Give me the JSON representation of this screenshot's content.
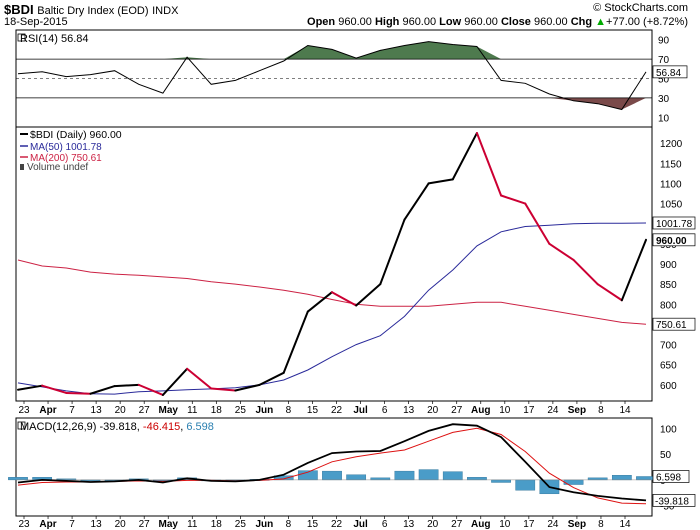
{
  "header": {
    "symbol": "$BDI",
    "name": "Baltic Dry Index (EOD)",
    "exchange": "INDX",
    "date": "18-Sep-2015",
    "watermark": "© StockCharts.com",
    "open_label": "Open",
    "open": "960.00",
    "high_label": "High",
    "high": "960.00",
    "low_label": "Low",
    "low": "960.00",
    "close_label": "Close",
    "close": "960.00",
    "chg_label": "Chg",
    "chg": "+77.00 (+8.72%)",
    "chg_arrow": "▲"
  },
  "rsi": {
    "legend": "RSI(14) 56.84",
    "current": "56.84",
    "levels": [
      90,
      70,
      50,
      30,
      10
    ],
    "colors": {
      "over": "#4e7a4e",
      "under": "#7a4a4a"
    }
  },
  "price": {
    "legend": [
      "$BDI (Daily) 960.00",
      "MA(50) 1001.78",
      "MA(200) 750.61",
      "Volume undef"
    ],
    "price_tag": "960.00",
    "ma50_tag": "1001.78",
    "ma200_tag": "750.61",
    "ticks": [
      1200,
      1150,
      1100,
      1050,
      1000,
      950,
      900,
      850,
      800,
      750,
      700,
      650,
      600
    ],
    "colors": {
      "up": "#000000",
      "down": "#cc0033",
      "ma50": "#2a2a9a",
      "ma200": "#cc2244"
    }
  },
  "macd": {
    "legend_prefix": "MACD(12,26,9) ",
    "v1": "-39.818",
    "v2": "-46.415",
    "v3": "6.598",
    "ticks": [
      100,
      50,
      0,
      -50
    ],
    "hist_tag": "6.598",
    "macd_tag": "-39.818"
  },
  "xaxis": {
    "labels": [
      "23",
      "Apr",
      "7",
      "13",
      "20",
      "27",
      "May",
      "11",
      "18",
      "25",
      "Jun",
      "8",
      "15",
      "22",
      "Jul",
      "6",
      "13",
      "20",
      "27",
      "Aug",
      "10",
      "17",
      "24",
      "Sep",
      "8",
      "14"
    ]
  },
  "chart_data": {
    "type": "line",
    "title": "$BDI Baltic Dry Index (EOD) INDX",
    "x": [
      "Mar 23",
      "Mar 30",
      "Apr 7",
      "Apr 13",
      "Apr 20",
      "Apr 27",
      "May 4",
      "May 11",
      "May 18",
      "May 25",
      "Jun 1",
      "Jun 8",
      "Jun 15",
      "Jun 22",
      "Jun 29",
      "Jul 6",
      "Jul 13",
      "Jul 20",
      "Jul 27",
      "Aug 3",
      "Aug 10",
      "Aug 17",
      "Aug 24",
      "Aug 31",
      "Sep 8",
      "Sep 14",
      "Sep 18"
    ],
    "series": [
      {
        "name": "$BDI (Daily)",
        "values": [
          588,
          598,
          580,
          578,
          597,
          600,
          575,
          640,
          591,
          586,
          600,
          630,
          782,
          830,
          797,
          850,
          1010,
          1100,
          1110,
          1225,
          1070,
          1050,
          950,
          910,
          850,
          810,
          960
        ]
      },
      {
        "name": "MA(50)",
        "values": [
          605,
          595,
          585,
          578,
          577,
          583,
          585,
          588,
          590,
          593,
          600,
          612,
          637,
          670,
          700,
          722,
          770,
          835,
          885,
          945,
          980,
          993,
          996,
          1000,
          1001,
          1001,
          1001.78
        ]
      },
      {
        "name": "MA(200)",
        "values": [
          910,
          895,
          890,
          880,
          875,
          872,
          868,
          864,
          856,
          850,
          843,
          835,
          825,
          812,
          800,
          795,
          795,
          795,
          800,
          805,
          805,
          795,
          785,
          775,
          765,
          755,
          750.61
        ]
      },
      {
        "name": "RSI(14)",
        "values": [
          55,
          57,
          52,
          54,
          58,
          44,
          35,
          72,
          44,
          48,
          58,
          68,
          84,
          80,
          71,
          79,
          84,
          88,
          85,
          83,
          48,
          45,
          34,
          27,
          24,
          18,
          56.84
        ]
      },
      {
        "name": "MACD(12,26,9)",
        "values": [
          -5,
          0,
          -2,
          -4,
          -3,
          0,
          -5,
          3,
          -2,
          -3,
          0,
          10,
          33,
          52,
          55,
          56,
          75,
          95,
          108,
          105,
          83,
          35,
          -14,
          -24,
          -31,
          -36,
          -39.818
        ]
      },
      {
        "name": "Signal",
        "values": [
          -10,
          -5,
          -4,
          -4,
          -3,
          -2,
          -3,
          -1,
          -1,
          -2,
          -1,
          2,
          15,
          35,
          45,
          52,
          58,
          75,
          92,
          100,
          88,
          55,
          13,
          -15,
          -35,
          -45,
          -46.415
        ]
      },
      {
        "name": "Histogram",
        "values": [
          5,
          5,
          2,
          0,
          0,
          2,
          -2,
          4,
          -1,
          -1,
          1,
          8,
          18,
          17,
          10,
          4,
          17,
          20,
          16,
          5,
          -5,
          -20,
          -27,
          -9,
          4,
          9,
          6.598
        ]
      }
    ],
    "ylim": [
      560,
      1240
    ],
    "rsi_ylim": [
      0,
      100
    ],
    "macd_ylim": [
      -70,
      120
    ],
    "grid": false,
    "legend": "top-left"
  }
}
